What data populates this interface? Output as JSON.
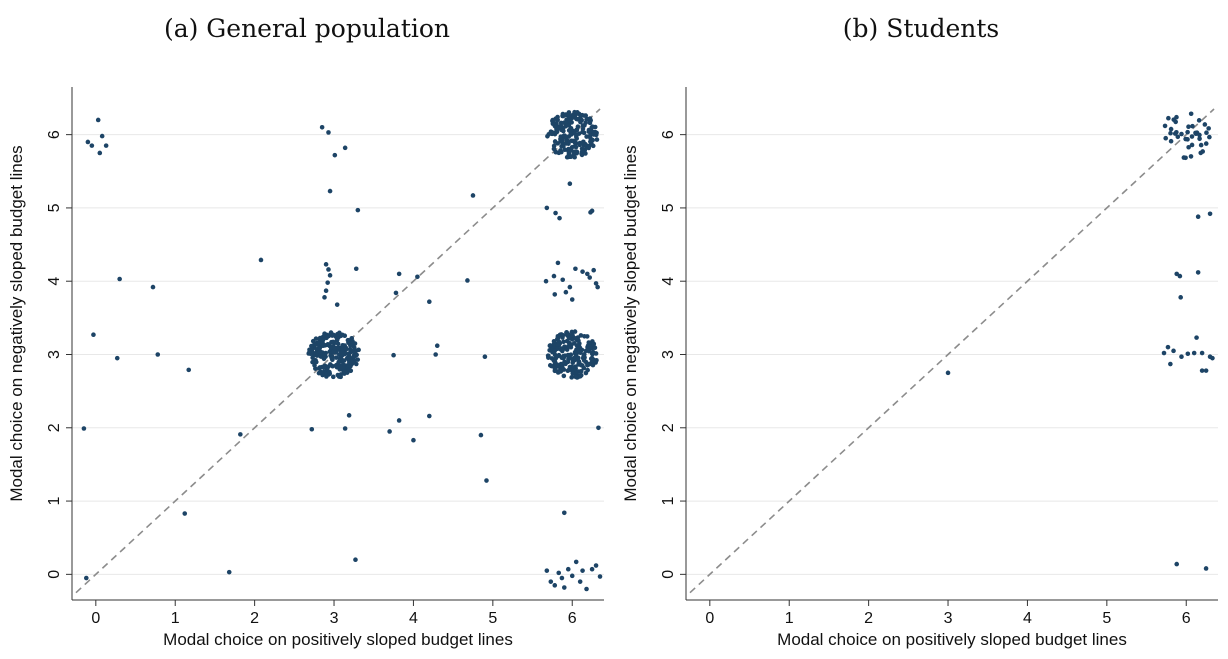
{
  "colors": {
    "marker": "#1d4466",
    "diagonal": "#8c8c8c",
    "grid": "#e8e8e8",
    "axis": "#333333"
  },
  "chart_data": [
    {
      "type": "scatter",
      "title": "(a) General population",
      "xlabel": "Modal choice on positively sloped budget lines",
      "ylabel": "Modal choice on negatively sloped budget lines",
      "xlim": [
        -0.3,
        6.4
      ],
      "ylim": [
        -0.35,
        6.65
      ],
      "xticks": [
        "0",
        "1",
        "2",
        "3",
        "4",
        "5",
        "6"
      ],
      "yticks": [
        "0",
        "1",
        "2",
        "3",
        "4",
        "5",
        "6"
      ],
      "grid": true,
      "diagonal": "45-degree dashed line",
      "points": [
        [
          -0.1,
          5.9
        ],
        [
          -0.05,
          5.85
        ],
        [
          0.03,
          6.2
        ],
        [
          0.05,
          5.75
        ],
        [
          0.08,
          5.98
        ],
        [
          0.13,
          5.85
        ],
        [
          0.3,
          4.03
        ],
        [
          0.72,
          3.92
        ],
        [
          -0.03,
          3.27
        ],
        [
          0.27,
          2.95
        ],
        [
          0.78,
          3.0
        ],
        [
          1.17,
          2.79
        ],
        [
          -0.15,
          1.99
        ],
        [
          1.82,
          1.91
        ],
        [
          1.12,
          0.83
        ],
        [
          1.68,
          0.03
        ],
        [
          -0.12,
          -0.05
        ],
        [
          2.08,
          4.29
        ],
        [
          2.85,
          6.1
        ],
        [
          2.93,
          6.03
        ],
        [
          3.01,
          5.72
        ],
        [
          3.14,
          5.82
        ],
        [
          2.95,
          5.23
        ],
        [
          3.3,
          4.97
        ],
        [
          2.9,
          4.23
        ],
        [
          2.93,
          4.16
        ],
        [
          2.95,
          4.08
        ],
        [
          2.92,
          3.98
        ],
        [
          2.9,
          3.87
        ],
        [
          2.88,
          3.78
        ],
        [
          3.04,
          3.68
        ],
        [
          3.28,
          4.17
        ],
        [
          3.78,
          3.84
        ],
        [
          3.82,
          4.1
        ],
        [
          4.05,
          4.06
        ],
        [
          4.2,
          3.72
        ],
        [
          4.68,
          4.01
        ],
        [
          4.75,
          5.17
        ],
        [
          3.75,
          2.99
        ],
        [
          4.28,
          3.0
        ],
        [
          4.3,
          3.12
        ],
        [
          4.9,
          2.97
        ],
        [
          2.72,
          1.98
        ],
        [
          3.14,
          1.99
        ],
        [
          3.19,
          2.17
        ],
        [
          3.7,
          1.95
        ],
        [
          3.82,
          2.1
        ],
        [
          4.0,
          1.83
        ],
        [
          4.2,
          2.16
        ],
        [
          4.85,
          1.9
        ],
        [
          4.92,
          1.28
        ],
        [
          3.27,
          0.2
        ],
        [
          5.68,
          5.0
        ],
        [
          5.79,
          4.93
        ],
        [
          5.84,
          4.86
        ],
        [
          5.97,
          5.33
        ],
        [
          6.23,
          4.94
        ],
        [
          6.25,
          4.96
        ],
        [
          5.67,
          4.0
        ],
        [
          5.77,
          4.07
        ],
        [
          5.82,
          4.25
        ],
        [
          5.88,
          4.02
        ],
        [
          5.92,
          3.85
        ],
        [
          5.97,
          3.92
        ],
        [
          6.04,
          4.17
        ],
        [
          6.13,
          4.13
        ],
        [
          6.19,
          4.1
        ],
        [
          6.22,
          4.05
        ],
        [
          6.27,
          4.15
        ],
        [
          6.3,
          3.97
        ],
        [
          6.32,
          3.92
        ],
        [
          5.78,
          3.82
        ],
        [
          6.0,
          3.75
        ],
        [
          6.33,
          2.0
        ],
        [
          5.9,
          0.84
        ],
        [
          5.68,
          0.05
        ],
        [
          5.73,
          -0.1
        ],
        [
          5.78,
          -0.15
        ],
        [
          5.83,
          0.02
        ],
        [
          5.87,
          -0.05
        ],
        [
          5.9,
          -0.18
        ],
        [
          5.95,
          0.07
        ],
        [
          6.0,
          -0.02
        ],
        [
          6.05,
          0.17
        ],
        [
          6.1,
          -0.1
        ],
        [
          6.13,
          0.05
        ],
        [
          6.18,
          -0.2
        ],
        [
          6.25,
          0.07
        ],
        [
          6.3,
          0.12
        ],
        [
          6.35,
          -0.03
        ]
      ],
      "clusters": [
        {
          "x": 3.0,
          "y": 3.0,
          "n": 230
        },
        {
          "x": 6.0,
          "y": 6.0,
          "n": 190
        },
        {
          "x": 6.0,
          "y": 3.0,
          "n": 200
        }
      ]
    },
    {
      "type": "scatter",
      "title": "(b) Students",
      "xlabel": "Modal choice on positively sloped budget lines",
      "ylabel": "Modal choice on negatively sloped budget lines",
      "xlim": [
        -0.3,
        6.4
      ],
      "ylim": [
        -0.35,
        6.65
      ],
      "xticks": [
        "0",
        "1",
        "2",
        "3",
        "4",
        "5",
        "6"
      ],
      "yticks": [
        "0",
        "1",
        "2",
        "3",
        "4",
        "5",
        "6"
      ],
      "grid": true,
      "diagonal": "45-degree dashed line",
      "points": [
        [
          3.0,
          2.75
        ],
        [
          5.88,
          0.14
        ],
        [
          6.25,
          0.08
        ],
        [
          6.15,
          4.88
        ],
        [
          6.3,
          4.92
        ],
        [
          5.88,
          4.1
        ],
        [
          5.92,
          4.07
        ],
        [
          6.15,
          4.12
        ],
        [
          5.93,
          3.78
        ],
        [
          5.72,
          3.02
        ],
        [
          5.77,
          3.1
        ],
        [
          5.8,
          2.87
        ],
        [
          5.84,
          3.05
        ],
        [
          5.94,
          2.97
        ],
        [
          6.02,
          3.01
        ],
        [
          6.1,
          3.02
        ],
        [
          6.13,
          3.23
        ],
        [
          6.2,
          2.78
        ],
        [
          6.25,
          2.78
        ],
        [
          6.2,
          3.02
        ],
        [
          6.3,
          2.97
        ],
        [
          6.33,
          2.95
        ]
      ],
      "clusters": [
        {
          "x": 6.0,
          "y": 6.0,
          "n": 40
        }
      ]
    }
  ]
}
